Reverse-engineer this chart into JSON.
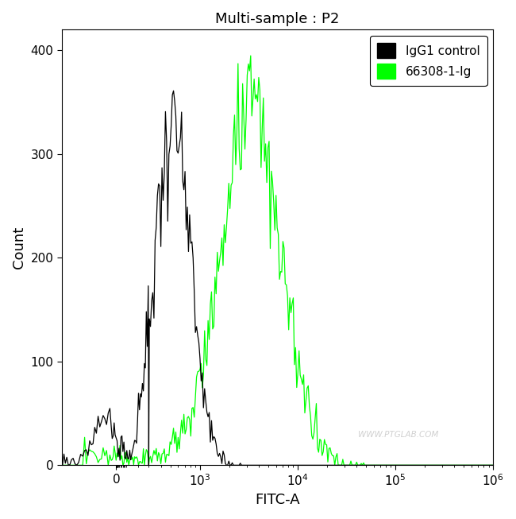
{
  "title": "Multi-sample : P2",
  "xlabel": "FITC-A",
  "ylabel": "Count",
  "ylim": [
    0,
    420
  ],
  "yticks": [
    0,
    100,
    200,
    300,
    400
  ],
  "legend_labels": [
    "IgG1 control",
    "66308-1-Ig"
  ],
  "legend_colors": [
    "#000000",
    "#00ff00"
  ],
  "watermark": "WWW.PTGLAB.COM",
  "background_color": "#ffffff",
  "black_peak_log": 2.72,
  "black_peak_height": 338,
  "black_peak_sigma": 0.18,
  "green_peak_log": 3.52,
  "green_peak_height": 358,
  "green_peak_sigma": 0.3,
  "linthresh": 300,
  "linscale": 0.3,
  "x_min": -500,
  "x_max": 1000000
}
